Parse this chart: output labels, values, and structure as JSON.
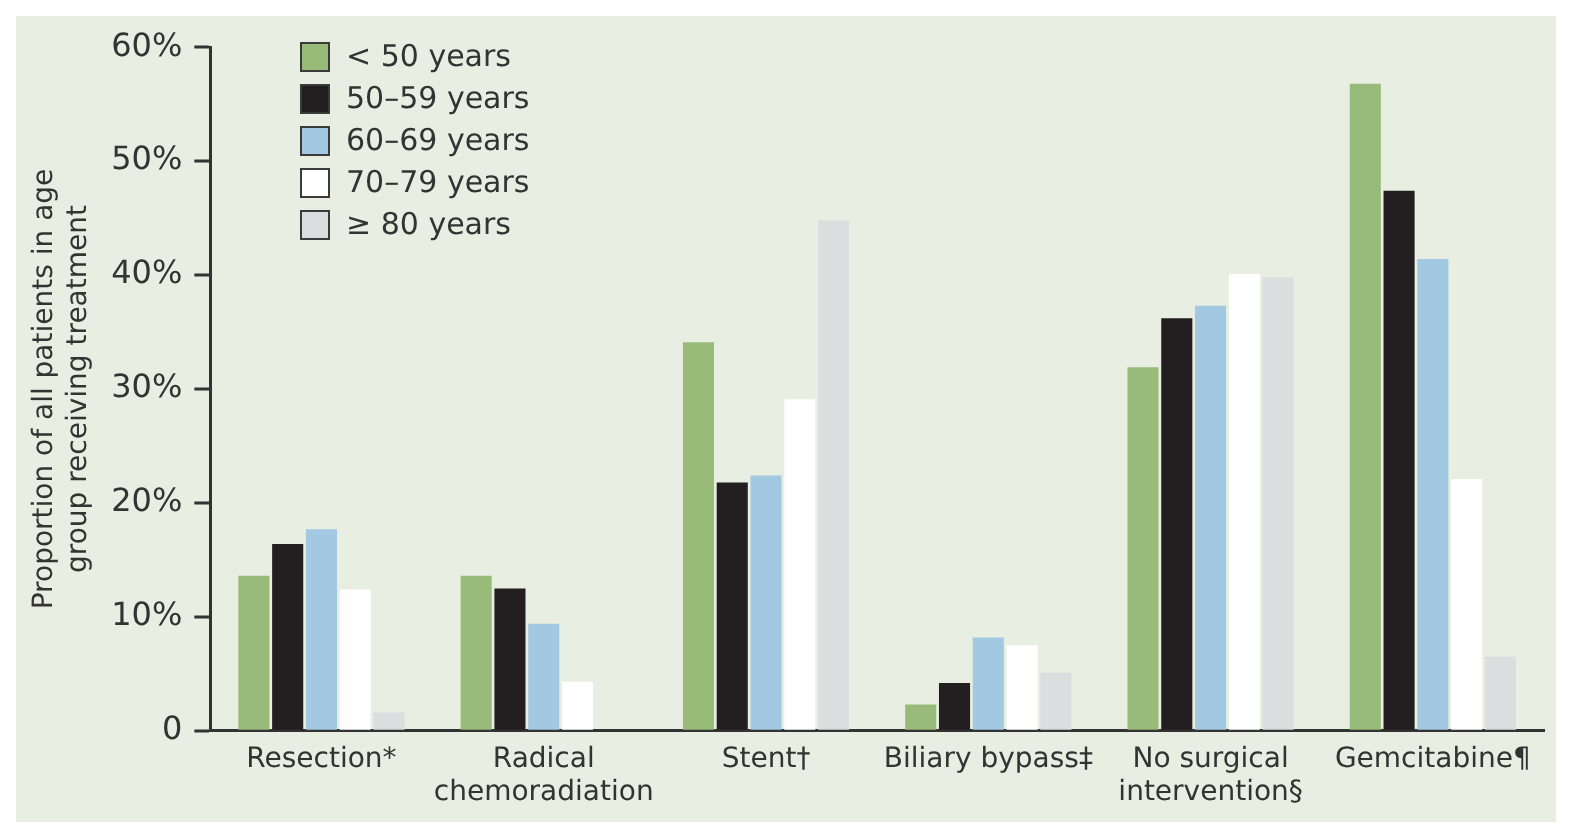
{
  "chart_data": {
    "type": "bar",
    "ylabel": "Proportion of all patients in age group receiving treatment",
    "categories": [
      "Resection*",
      "Radical chemoradiation",
      "Stent†",
      "Biliary bypass‡",
      "No surgical intervention§",
      "Gemcitabine¶"
    ],
    "series": [
      {
        "name": "< 50 years",
        "color": "#98bb7a",
        "values": [
          13.6,
          13.6,
          34.1,
          2.3,
          31.9,
          56.8
        ]
      },
      {
        "name": "50–59 years",
        "color": "#231f20",
        "values": [
          16.4,
          12.5,
          21.8,
          4.2,
          36.2,
          47.4
        ]
      },
      {
        "name": "60–69 years",
        "color": "#a3c8e2",
        "values": [
          17.7,
          9.4,
          22.4,
          8.2,
          37.3,
          41.4
        ]
      },
      {
        "name": "70–79 years",
        "color": "#ffffff",
        "values": [
          12.4,
          4.3,
          29.1,
          7.5,
          40.1,
          22.1
        ]
      },
      {
        "name": "≥ 80 years",
        "color": "#dcdddf",
        "values": [
          1.6,
          null,
          44.8,
          5.1,
          39.8,
          6.5
        ]
      }
    ],
    "ylim": [
      0,
      60
    ],
    "yticks": [
      {
        "value": 0,
        "label": "0"
      },
      {
        "value": 10,
        "label": "10%"
      },
      {
        "value": 20,
        "label": "20%"
      },
      {
        "value": 30,
        "label": "30%"
      },
      {
        "value": 40,
        "label": "40%"
      },
      {
        "value": 50,
        "label": "50%"
      },
      {
        "value": 60,
        "label": "60%"
      }
    ],
    "grid": false,
    "legend": "top left"
  }
}
